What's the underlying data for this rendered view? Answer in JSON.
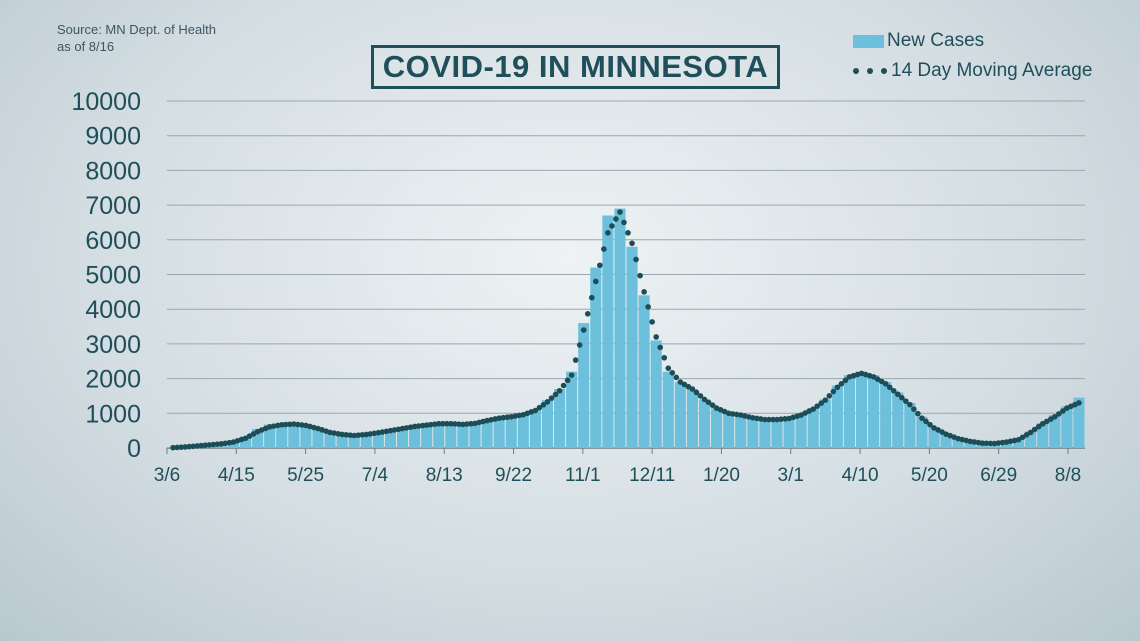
{
  "source": {
    "line1": "Source: MN Dept. of Health",
    "line2": "as of 8/16"
  },
  "title": "COVID-19 IN MINNESOTA",
  "legend": {
    "bars": "New Cases",
    "line": "14 Day Moving Average"
  },
  "colors": {
    "bars": "#6cc0db",
    "line": "#1d4d57",
    "text": "#1f4f5a",
    "grid": "#9aa8ae"
  },
  "chart_data": {
    "type": "bar",
    "title": "COVID-19 IN MINNESOTA",
    "xlabel": "",
    "ylabel": "",
    "ylim": [
      0,
      10000
    ],
    "yticks": [
      0,
      1000,
      2000,
      3000,
      4000,
      5000,
      6000,
      7000,
      8000,
      9000,
      10000
    ],
    "xticks": [
      "3/6",
      "4/15",
      "5/25",
      "7/4",
      "8/13",
      "9/22",
      "11/1",
      "12/11",
      "1/20",
      "3/1",
      "4/10",
      "5/20",
      "6/29",
      "8/8"
    ],
    "grid": true,
    "legend_position": "top-right",
    "series": [
      {
        "name": "New Cases",
        "kind": "bar",
        "week_start": [
          "3/6",
          "3/13",
          "3/20",
          "3/27",
          "4/3",
          "4/10",
          "4/17",
          "4/24",
          "5/1",
          "5/8",
          "5/15",
          "5/22",
          "5/29",
          "6/5",
          "6/12",
          "6/19",
          "6/26",
          "7/3",
          "7/10",
          "7/17",
          "7/24",
          "7/31",
          "8/7",
          "8/14",
          "8/21",
          "8/28",
          "9/4",
          "9/11",
          "9/18",
          "9/25",
          "10/2",
          "10/9",
          "10/16",
          "10/23",
          "10/30",
          "11/6",
          "11/13",
          "11/20",
          "11/27",
          "12/4",
          "12/11",
          "12/18",
          "12/25",
          "1/1",
          "1/8",
          "1/15",
          "1/22",
          "1/29",
          "2/5",
          "2/12",
          "2/19",
          "2/26",
          "3/5",
          "3/12",
          "3/19",
          "3/26",
          "4/2",
          "4/9",
          "4/16",
          "4/23",
          "4/30",
          "5/7",
          "5/14",
          "5/21",
          "5/28",
          "6/4",
          "6/11",
          "6/18",
          "6/25",
          "7/2",
          "7/9",
          "7/16",
          "7/23",
          "7/30",
          "8/6",
          "8/13"
        ],
        "values": [
          20,
          40,
          70,
          100,
          130,
          200,
          330,
          550,
          680,
          720,
          740,
          680,
          600,
          480,
          420,
          380,
          400,
          460,
          520,
          590,
          640,
          680,
          720,
          720,
          700,
          740,
          820,
          900,
          930,
          1000,
          1120,
          1380,
          1700,
          2200,
          3600,
          5200,
          6700,
          6900,
          5800,
          4400,
          3100,
          2200,
          1900,
          1700,
          1400,
          1150,
          1000,
          950,
          870,
          820,
          820,
          850,
          950,
          1150,
          1400,
          1800,
          2100,
          2200,
          2100,
          1900,
          1600,
          1300,
          900,
          600,
          420,
          280,
          200,
          150,
          140,
          180,
          260,
          480,
          720,
          950,
          1200,
          1450
        ]
      },
      {
        "name": "14 Day Moving Average",
        "kind": "dotted-line",
        "week_start": [
          "3/6",
          "3/13",
          "3/20",
          "3/27",
          "4/3",
          "4/10",
          "4/17",
          "4/24",
          "5/1",
          "5/8",
          "5/15",
          "5/22",
          "5/29",
          "6/5",
          "6/12",
          "6/19",
          "6/26",
          "7/3",
          "7/10",
          "7/17",
          "7/24",
          "7/31",
          "8/7",
          "8/14",
          "8/21",
          "8/28",
          "9/4",
          "9/11",
          "9/18",
          "9/25",
          "10/2",
          "10/9",
          "10/16",
          "10/23",
          "10/30",
          "11/6",
          "11/13",
          "11/20",
          "11/27",
          "12/4",
          "12/11",
          "12/18",
          "12/25",
          "1/1",
          "1/8",
          "1/15",
          "1/22",
          "1/29",
          "2/5",
          "2/12",
          "2/19",
          "2/26",
          "3/5",
          "3/12",
          "3/19",
          "3/26",
          "4/2",
          "4/9",
          "4/16",
          "4/23",
          "4/30",
          "5/7",
          "5/14",
          "5/21",
          "5/28",
          "6/4",
          "6/11",
          "6/18",
          "6/25",
          "7/2",
          "7/9",
          "7/16",
          "7/23",
          "7/30",
          "8/6",
          "8/13"
        ],
        "values": [
          10,
          30,
          60,
          90,
          120,
          170,
          280,
          470,
          610,
          670,
          690,
          650,
          560,
          450,
          390,
          360,
          390,
          440,
          500,
          560,
          620,
          660,
          700,
          700,
          680,
          710,
          790,
          860,
          900,
          960,
          1080,
          1330,
          1650,
          2100,
          3400,
          4800,
          6200,
          6800,
          5900,
          4500,
          3200,
          2300,
          1900,
          1700,
          1400,
          1150,
          1000,
          950,
          870,
          820,
          820,
          850,
          950,
          1120,
          1380,
          1750,
          2050,
          2150,
          2050,
          1850,
          1550,
          1250,
          860,
          580,
          400,
          270,
          190,
          140,
          130,
          170,
          240,
          450,
          700,
          900,
          1150,
          1300
        ]
      }
    ]
  }
}
